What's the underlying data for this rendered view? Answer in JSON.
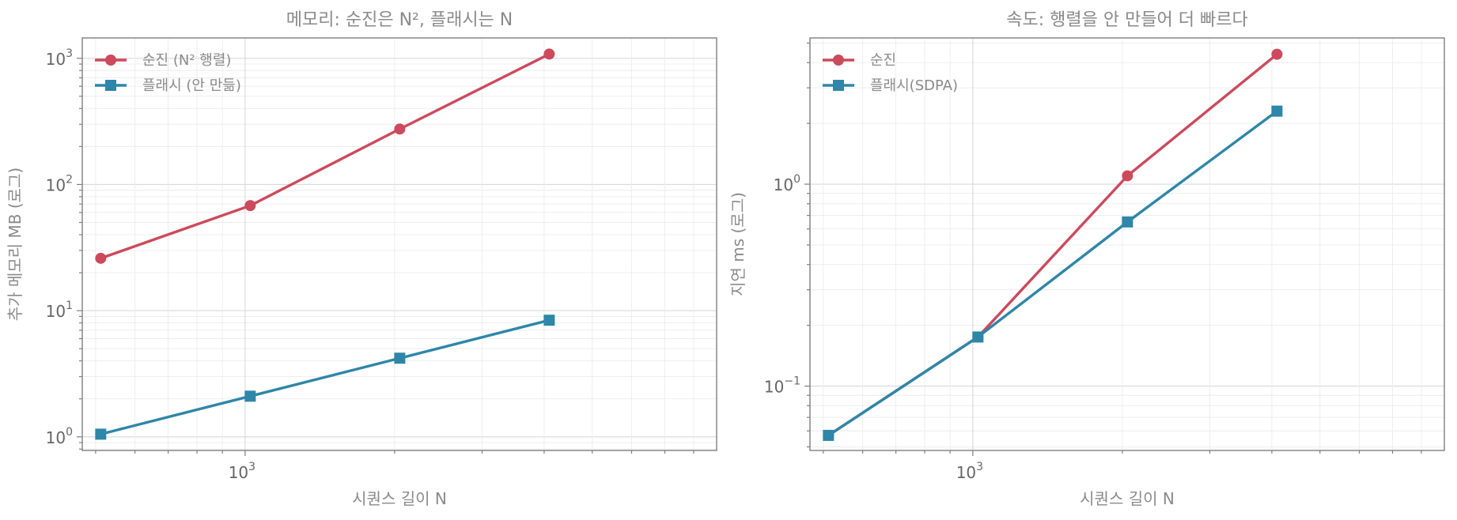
{
  "chart_data": [
    {
      "type": "line",
      "title": "메모리: 순진은 N², 플래시는 N",
      "xlabel": "시퀀스 길이 N",
      "ylabel": "추가 메모리 MB (로그)",
      "xscale": "log",
      "yscale": "log",
      "xlim": [
        470,
        8900
      ],
      "ylim": [
        0.78,
        1450
      ],
      "x": [
        512,
        1024,
        2048,
        4096
      ],
      "x_ticks": [
        {
          "value": 1000,
          "base": "10",
          "exp": "3"
        }
      ],
      "y_ticks": [
        {
          "value": 1,
          "base": "10",
          "exp": "0"
        },
        {
          "value": 10,
          "base": "10",
          "exp": "1"
        },
        {
          "value": 100,
          "base": "10",
          "exp": "2"
        },
        {
          "value": 1000,
          "base": "10",
          "exp": "3"
        }
      ],
      "grid": true,
      "legend_position": "top-left",
      "series": [
        {
          "name": "순진 (N² 행렬)",
          "values": [
            26,
            68,
            275,
            1080
          ],
          "color": "#cc4a5c",
          "marker": "circle"
        },
        {
          "name": "플래시 (안 만듦)",
          "values": [
            1.05,
            2.1,
            4.2,
            8.4
          ],
          "color": "#2e86a8",
          "marker": "square"
        }
      ]
    },
    {
      "type": "line",
      "title": "속도: 행렬을 안 만들어 더 빠르다",
      "xlabel": "시퀀스 길이 N",
      "ylabel": "지연 ms (로그)",
      "xscale": "log",
      "yscale": "log",
      "xlim": [
        470,
        8900
      ],
      "ylim": [
        0.048,
        5.3
      ],
      "x": [
        512,
        1024,
        2048,
        4096
      ],
      "x_ticks": [
        {
          "value": 1000,
          "base": "10",
          "exp": "3"
        }
      ],
      "y_ticks": [
        {
          "value": 0.1,
          "base": "10",
          "exp": "−1"
        },
        {
          "value": 1,
          "base": "10",
          "exp": "0"
        }
      ],
      "grid": true,
      "legend_position": "top-left",
      "series": [
        {
          "name": "순진",
          "values": [
            0.057,
            0.175,
            1.1,
            4.4
          ],
          "color": "#cc4a5c",
          "marker": "circle"
        },
        {
          "name": "플래시(SDPA)",
          "values": [
            0.057,
            0.175,
            0.65,
            2.3
          ],
          "color": "#2e86a8",
          "marker": "square"
        }
      ]
    }
  ]
}
